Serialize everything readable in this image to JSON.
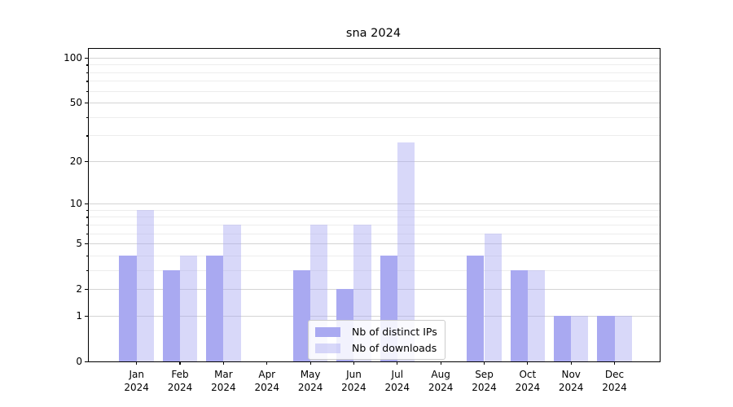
{
  "chart_data": {
    "type": "bar",
    "title": "sna 2024",
    "categories": [
      "Jan 2024",
      "Feb 2024",
      "Mar 2024",
      "Apr 2024",
      "May 2024",
      "Jun 2024",
      "Jul 2024",
      "Aug 2024",
      "Sep 2024",
      "Oct 2024",
      "Nov 2024",
      "Dec 2024"
    ],
    "series": [
      {
        "name": "Nb of distinct IPs",
        "color": "#a9a9f1",
        "opacity": 1,
        "values": [
          4,
          3,
          4,
          0,
          3,
          2,
          4,
          0,
          4,
          3,
          1,
          1
        ]
      },
      {
        "name": "Nb of downloads",
        "color": "#a9a9f1",
        "opacity": 0.45,
        "values": [
          9,
          4,
          7,
          0,
          7,
          7,
          27,
          0,
          6,
          3,
          1,
          1
        ]
      }
    ],
    "xlabel": "",
    "ylabel": "",
    "yscale": "log1p",
    "ylim": [
      0,
      115
    ],
    "yticks": [
      0,
      1,
      2,
      5,
      10,
      20,
      50,
      100
    ],
    "minor_gridlines": [
      3,
      4,
      6,
      7,
      8,
      9,
      30,
      40,
      60,
      70,
      80,
      90
    ],
    "grid": true,
    "legend_position": "lower center",
    "colors": {
      "axis": "#000000",
      "major_grid": "#d4d4d4",
      "minor_grid": "#ededed",
      "bar_dark": "#a9a9f1",
      "bar_light": "#d9d9f8"
    }
  }
}
